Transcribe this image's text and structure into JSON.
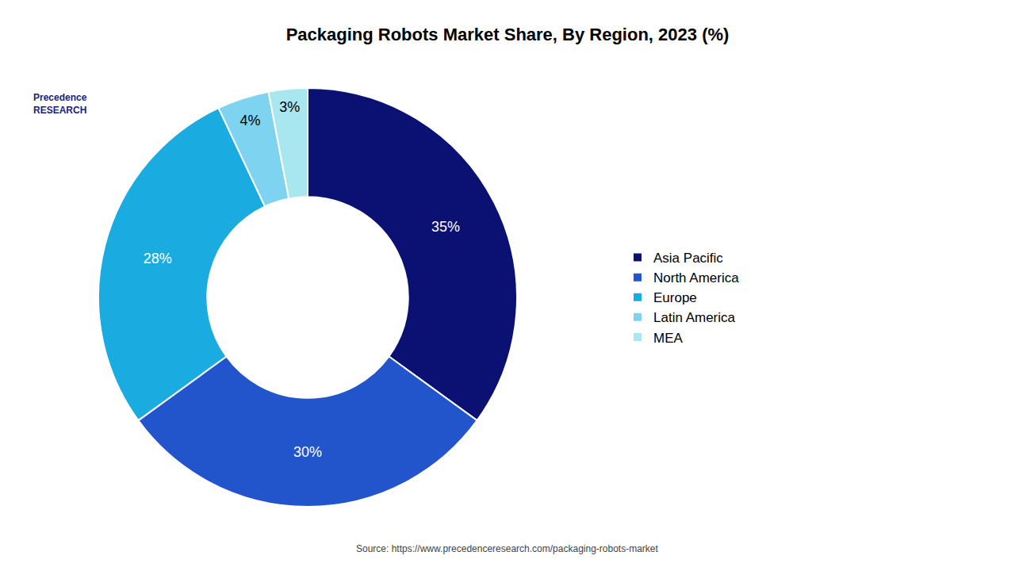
{
  "chart_data": {
    "type": "donut",
    "title": "Packaging Robots Market Share, By Region, 2023 (%)",
    "categories": [
      "Asia Pacific",
      "North America",
      "Europe",
      "Latin America",
      "MEA"
    ],
    "values": [
      35,
      30,
      28,
      4,
      3
    ],
    "value_labels": [
      "35%",
      "30%",
      "28%",
      "4%",
      "3%"
    ],
    "colors": [
      "#0a1172",
      "#2255cc",
      "#1aace0",
      "#7ed4f0",
      "#a8e6f0"
    ],
    "data_labels": true,
    "legend": "right",
    "annotations": [
      "Source: https://www.precedenceresearch.com/packaging-robots-market",
      "Precedence",
      "RESEARCH"
    ]
  }
}
